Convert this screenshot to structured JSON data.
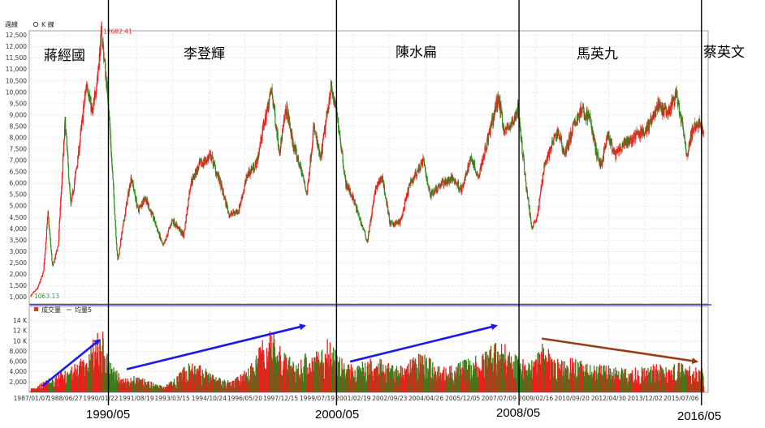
{
  "header": {
    "period_label": "週線",
    "chart_type_label": "K 線",
    "volume_legend": "成交量",
    "ma_legend": "均量5"
  },
  "chart_data": {
    "type": "candlestick",
    "price": {
      "ylim": [
        700,
        12700
      ],
      "y_ticks": [
        "1,000",
        "1,500",
        "2,000",
        "2,500",
        "3,000",
        "3,500",
        "4,000",
        "4,500",
        "5,000",
        "5,500",
        "6,000",
        "6,500",
        "7,000",
        "7,500",
        "8,000",
        "8,500",
        "9,000",
        "9,500",
        "10,000",
        "10,500",
        "11,000",
        "11,500",
        "12,000",
        "12,500"
      ],
      "max_label": "12682.41",
      "min_label": "1063.13",
      "key_points": [
        {
          "x": 1987.0,
          "y": 1063
        },
        {
          "x": 1987.3,
          "y": 1400
        },
        {
          "x": 1987.55,
          "y": 2100
        },
        {
          "x": 1987.75,
          "y": 4650
        },
        {
          "x": 1987.95,
          "y": 2300
        },
        {
          "x": 1988.2,
          "y": 3300
        },
        {
          "x": 1988.5,
          "y": 8700
        },
        {
          "x": 1988.75,
          "y": 5000
        },
        {
          "x": 1989.05,
          "y": 7000
        },
        {
          "x": 1989.45,
          "y": 10500
        },
        {
          "x": 1989.7,
          "y": 9000
        },
        {
          "x": 1989.95,
          "y": 11000
        },
        {
          "x": 1990.1,
          "y": 12682
        },
        {
          "x": 1990.4,
          "y": 9500
        },
        {
          "x": 1990.6,
          "y": 6000
        },
        {
          "x": 1990.8,
          "y": 2560
        },
        {
          "x": 1991.1,
          "y": 4500
        },
        {
          "x": 1991.4,
          "y": 6300
        },
        {
          "x": 1991.7,
          "y": 4800
        },
        {
          "x": 1992.0,
          "y": 5400
        },
        {
          "x": 1992.4,
          "y": 4400
        },
        {
          "x": 1992.8,
          "y": 3200
        },
        {
          "x": 1993.2,
          "y": 4400
        },
        {
          "x": 1993.7,
          "y": 3700
        },
        {
          "x": 1994.0,
          "y": 6000
        },
        {
          "x": 1994.4,
          "y": 6800
        },
        {
          "x": 1994.9,
          "y": 7200
        },
        {
          "x": 1995.3,
          "y": 6000
        },
        {
          "x": 1995.7,
          "y": 4600
        },
        {
          "x": 1996.1,
          "y": 4800
        },
        {
          "x": 1996.5,
          "y": 6400
        },
        {
          "x": 1996.9,
          "y": 6900
        },
        {
          "x": 1997.2,
          "y": 8500
        },
        {
          "x": 1997.55,
          "y": 10100
        },
        {
          "x": 1997.9,
          "y": 7400
        },
        {
          "x": 1998.2,
          "y": 9300
        },
        {
          "x": 1998.5,
          "y": 7700
        },
        {
          "x": 1998.9,
          "y": 6400
        },
        {
          "x": 1999.1,
          "y": 5500
        },
        {
          "x": 1999.4,
          "y": 8500
        },
        {
          "x": 1999.7,
          "y": 7000
        },
        {
          "x": 2000.0,
          "y": 9200
        },
        {
          "x": 2000.15,
          "y": 10300
        },
        {
          "x": 2000.5,
          "y": 8500
        },
        {
          "x": 2000.8,
          "y": 6000
        },
        {
          "x": 2001.1,
          "y": 5400
        },
        {
          "x": 2001.4,
          "y": 4500
        },
        {
          "x": 2001.75,
          "y": 3450
        },
        {
          "x": 2002.1,
          "y": 5700
        },
        {
          "x": 2002.4,
          "y": 6300
        },
        {
          "x": 2002.75,
          "y": 4200
        },
        {
          "x": 2003.2,
          "y": 4300
        },
        {
          "x": 2003.6,
          "y": 5900
        },
        {
          "x": 2004.2,
          "y": 7000
        },
        {
          "x": 2004.5,
          "y": 5500
        },
        {
          "x": 2005.0,
          "y": 6000
        },
        {
          "x": 2005.5,
          "y": 6200
        },
        {
          "x": 2005.9,
          "y": 5700
        },
        {
          "x": 2006.3,
          "y": 7200
        },
        {
          "x": 2006.6,
          "y": 6300
        },
        {
          "x": 2007.0,
          "y": 7800
        },
        {
          "x": 2007.5,
          "y": 9800
        },
        {
          "x": 2007.75,
          "y": 8300
        },
        {
          "x": 2008.1,
          "y": 8600
        },
        {
          "x": 2008.35,
          "y": 9300
        },
        {
          "x": 2008.7,
          "y": 6000
        },
        {
          "x": 2008.95,
          "y": 4100
        },
        {
          "x": 2009.2,
          "y": 4500
        },
        {
          "x": 2009.5,
          "y": 6800
        },
        {
          "x": 2009.9,
          "y": 7800
        },
        {
          "x": 2010.1,
          "y": 8300
        },
        {
          "x": 2010.4,
          "y": 7300
        },
        {
          "x": 2010.8,
          "y": 8500
        },
        {
          "x": 2011.1,
          "y": 9200
        },
        {
          "x": 2011.5,
          "y": 8900
        },
        {
          "x": 2011.8,
          "y": 7300
        },
        {
          "x": 2012.0,
          "y": 6800
        },
        {
          "x": 2012.3,
          "y": 8100
        },
        {
          "x": 2012.6,
          "y": 7200
        },
        {
          "x": 2012.9,
          "y": 7600
        },
        {
          "x": 2013.3,
          "y": 7900
        },
        {
          "x": 2013.7,
          "y": 8200
        },
        {
          "x": 2014.0,
          "y": 8400
        },
        {
          "x": 2014.5,
          "y": 9400
        },
        {
          "x": 2014.9,
          "y": 9000
        },
        {
          "x": 2015.3,
          "y": 9900
        },
        {
          "x": 2015.6,
          "y": 8300
        },
        {
          "x": 2015.75,
          "y": 7200
        },
        {
          "x": 2016.0,
          "y": 8300
        },
        {
          "x": 2016.3,
          "y": 8700
        },
        {
          "x": 2016.5,
          "y": 8200
        }
      ]
    },
    "volume": {
      "ylim": [
        0,
        15500
      ],
      "y_ticks": [
        "2,000",
        "4,000",
        "6,000",
        "8,000",
        "10 K",
        "12 K",
        "14 K"
      ],
      "key_points": [
        {
          "x": 1987.0,
          "y": 600
        },
        {
          "x": 1987.6,
          "y": 1500
        },
        {
          "x": 1988.2,
          "y": 2500
        },
        {
          "x": 1988.8,
          "y": 3500
        },
        {
          "x": 1989.4,
          "y": 5000
        },
        {
          "x": 1989.9,
          "y": 8000
        },
        {
          "x": 1990.1,
          "y": 8500
        },
        {
          "x": 1990.5,
          "y": 4000
        },
        {
          "x": 1991.0,
          "y": 2000
        },
        {
          "x": 1991.6,
          "y": 2200
        },
        {
          "x": 1992.2,
          "y": 1500
        },
        {
          "x": 1992.8,
          "y": 900
        },
        {
          "x": 1993.3,
          "y": 1800
        },
        {
          "x": 1993.9,
          "y": 4000
        },
        {
          "x": 1994.5,
          "y": 3500
        },
        {
          "x": 1995.2,
          "y": 2000
        },
        {
          "x": 1995.8,
          "y": 1500
        },
        {
          "x": 1996.4,
          "y": 3000
        },
        {
          "x": 1997.0,
          "y": 6000
        },
        {
          "x": 1997.5,
          "y": 9000
        },
        {
          "x": 1998.0,
          "y": 5500
        },
        {
          "x": 1998.6,
          "y": 4000
        },
        {
          "x": 1999.2,
          "y": 5500
        },
        {
          "x": 1999.8,
          "y": 6500
        },
        {
          "x": 2000.1,
          "y": 7500
        },
        {
          "x": 2000.6,
          "y": 4500
        },
        {
          "x": 2001.2,
          "y": 3500
        },
        {
          "x": 2001.8,
          "y": 4500
        },
        {
          "x": 2002.3,
          "y": 5000
        },
        {
          "x": 2002.8,
          "y": 3500
        },
        {
          "x": 2003.5,
          "y": 4000
        },
        {
          "x": 2004.2,
          "y": 5500
        },
        {
          "x": 2004.8,
          "y": 3500
        },
        {
          "x": 2005.5,
          "y": 3500
        },
        {
          "x": 2006.2,
          "y": 4500
        },
        {
          "x": 2006.8,
          "y": 5000
        },
        {
          "x": 2007.5,
          "y": 7500
        },
        {
          "x": 2008.0,
          "y": 5500
        },
        {
          "x": 2008.4,
          "y": 4500
        },
        {
          "x": 2008.9,
          "y": 4000
        },
        {
          "x": 2009.4,
          "y": 6500
        },
        {
          "x": 2010.0,
          "y": 5000
        },
        {
          "x": 2010.6,
          "y": 4500
        },
        {
          "x": 2011.2,
          "y": 4500
        },
        {
          "x": 2011.8,
          "y": 4000
        },
        {
          "x": 2012.4,
          "y": 3500
        },
        {
          "x": 2013.0,
          "y": 3200
        },
        {
          "x": 2013.6,
          "y": 3300
        },
        {
          "x": 2014.2,
          "y": 3600
        },
        {
          "x": 2014.8,
          "y": 3800
        },
        {
          "x": 2015.4,
          "y": 4000
        },
        {
          "x": 2015.9,
          "y": 3500
        },
        {
          "x": 2016.5,
          "y": 3300
        }
      ]
    },
    "x_ticks": [
      {
        "label": "1987/01/07",
        "x": 1987.01
      },
      {
        "label": "1988/06/27",
        "x": 1988.49
      },
      {
        "label": "1990/01/22",
        "x": 1990.06
      },
      {
        "label": "1991/08/19",
        "x": 1991.63
      },
      {
        "label": "1993/03/15",
        "x": 1993.2
      },
      {
        "label": "1994/10/24",
        "x": 1994.81
      },
      {
        "label": "1996/05/20",
        "x": 1996.38
      },
      {
        "label": "1997/12/15",
        "x": 1997.95
      },
      {
        "label": "1999/07/19",
        "x": 1999.55
      },
      {
        "label": "2001/02/19",
        "x": 2001.13
      },
      {
        "label": "2002/09/23",
        "x": 2002.73
      },
      {
        "label": "2004/04/26",
        "x": 2004.32
      },
      {
        "label": "2005/12/05",
        "x": 2005.93
      },
      {
        "label": "2007/07/09",
        "x": 2007.52
      },
      {
        "label": "2009/02/16",
        "x": 2009.13
      },
      {
        "label": "2010/09/20",
        "x": 2010.72
      },
      {
        "label": "2012/04/30",
        "x": 2012.33
      },
      {
        "label": "2013/12/02",
        "x": 2013.92
      },
      {
        "label": "2015/07/06",
        "x": 2015.51
      }
    ],
    "eras": [
      {
        "name": "蔣經國"
      },
      {
        "name": "李登輝"
      },
      {
        "name": "陳水扁"
      },
      {
        "name": "馬英九"
      },
      {
        "name": "蔡英文"
      }
    ],
    "dividers": [
      {
        "label": "1990/05",
        "x": 1990.4
      },
      {
        "label": "2000/05",
        "x": 2000.4
      },
      {
        "label": "2008/05",
        "x": 2008.4
      },
      {
        "label": "2016/05",
        "x": 2016.4
      }
    ],
    "arrows": [
      {
        "color": "#1a1aee",
        "from": [
          1987.5,
          1200
        ],
        "to": [
          1990.0,
          10200
        ]
      },
      {
        "color": "#1a1aee",
        "from": [
          1991.2,
          4500
        ],
        "to": [
          1999.0,
          13000
        ]
      },
      {
        "color": "#1a1aee",
        "from": [
          2001.0,
          6000
        ],
        "to": [
          2007.4,
          13000
        ]
      },
      {
        "color": "#9a3d16",
        "from": [
          2009.4,
          10500
        ],
        "to": [
          2016.2,
          6000
        ]
      }
    ],
    "colors": {
      "up": "#ee1c1c",
      "down": "#2e8b1e",
      "divider": "#000000",
      "separator": "#2222bb"
    }
  }
}
